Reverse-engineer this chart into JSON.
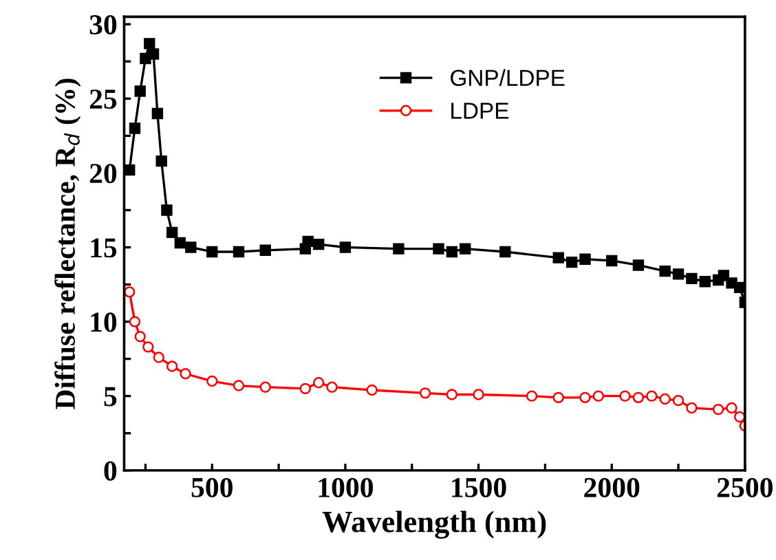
{
  "chart_data": {
    "type": "line",
    "xlabel": "Wavelength (nm)",
    "ylabel": "Diffuse reflectance, R$_{d}$ (%)",
    "xlim": [
      170,
      2500
    ],
    "ylim": [
      0,
      30.5
    ],
    "xticks": [
      {
        "value": 250,
        "label": null
      },
      500,
      {
        "value": 750,
        "label": null
      },
      1000,
      {
        "value": 1250,
        "label": null
      },
      1500,
      {
        "value": 1750,
        "label": null
      },
      2000,
      {
        "value": 2250,
        "label": null
      },
      2500
    ],
    "yticks": [
      0,
      {
        "value": 2.5,
        "label": null
      },
      5,
      {
        "value": 7.5,
        "label": null
      },
      10,
      {
        "value": 12.5,
        "label": null
      },
      15,
      {
        "value": 17.5,
        "label": null
      },
      20,
      {
        "value": 22.5,
        "label": null
      },
      25,
      {
        "value": 27.5,
        "label": null
      },
      30
    ],
    "grid": false,
    "legend": "top",
    "line_style": "solid",
    "series": [
      {
        "name": "GNP/LDPE",
        "color": "#000000",
        "marker": "square",
        "x": [
          190,
          210,
          230,
          250,
          265,
          280,
          295,
          310,
          330,
          350,
          380,
          420,
          500,
          600,
          700,
          850,
          860,
          900,
          1000,
          1200,
          1350,
          1400,
          1450,
          1600,
          1800,
          1850,
          1900,
          2000,
          2100,
          2200,
          2250,
          2300,
          2350,
          2400,
          2420,
          2450,
          2480,
          2500
        ],
        "values": [
          20.2,
          23,
          25.5,
          27.7,
          28.7,
          28,
          24,
          20.8,
          17.5,
          16,
          15.3,
          15,
          14.7,
          14.7,
          14.8,
          14.9,
          15.4,
          15.2,
          15,
          14.9,
          14.9,
          14.7,
          14.9,
          14.7,
          14.3,
          14.0,
          14.2,
          14.1,
          13.8,
          13.4,
          13.2,
          12.9,
          12.7,
          12.8,
          13.1,
          12.6,
          12.3,
          11.3
        ]
      },
      {
        "name": "LDPE",
        "color": "#ff0000",
        "marker": "circle",
        "x": [
          190,
          210,
          230,
          260,
          300,
          350,
          400,
          500,
          600,
          700,
          850,
          900,
          950,
          1100,
          1300,
          1400,
          1500,
          1700,
          1800,
          1900,
          1950,
          2050,
          2100,
          2150,
          2200,
          2250,
          2300,
          2400,
          2450,
          2480,
          2500
        ],
        "values": [
          12,
          10,
          9,
          8.3,
          7.6,
          7,
          6.5,
          6,
          5.7,
          5.6,
          5.5,
          5.9,
          5.6,
          5.4,
          5.2,
          5.1,
          5.1,
          5.0,
          4.9,
          4.9,
          5.0,
          5.0,
          4.9,
          5.0,
          4.8,
          4.7,
          4.2,
          4.1,
          4.2,
          3.6,
          3.0
        ]
      }
    ]
  }
}
